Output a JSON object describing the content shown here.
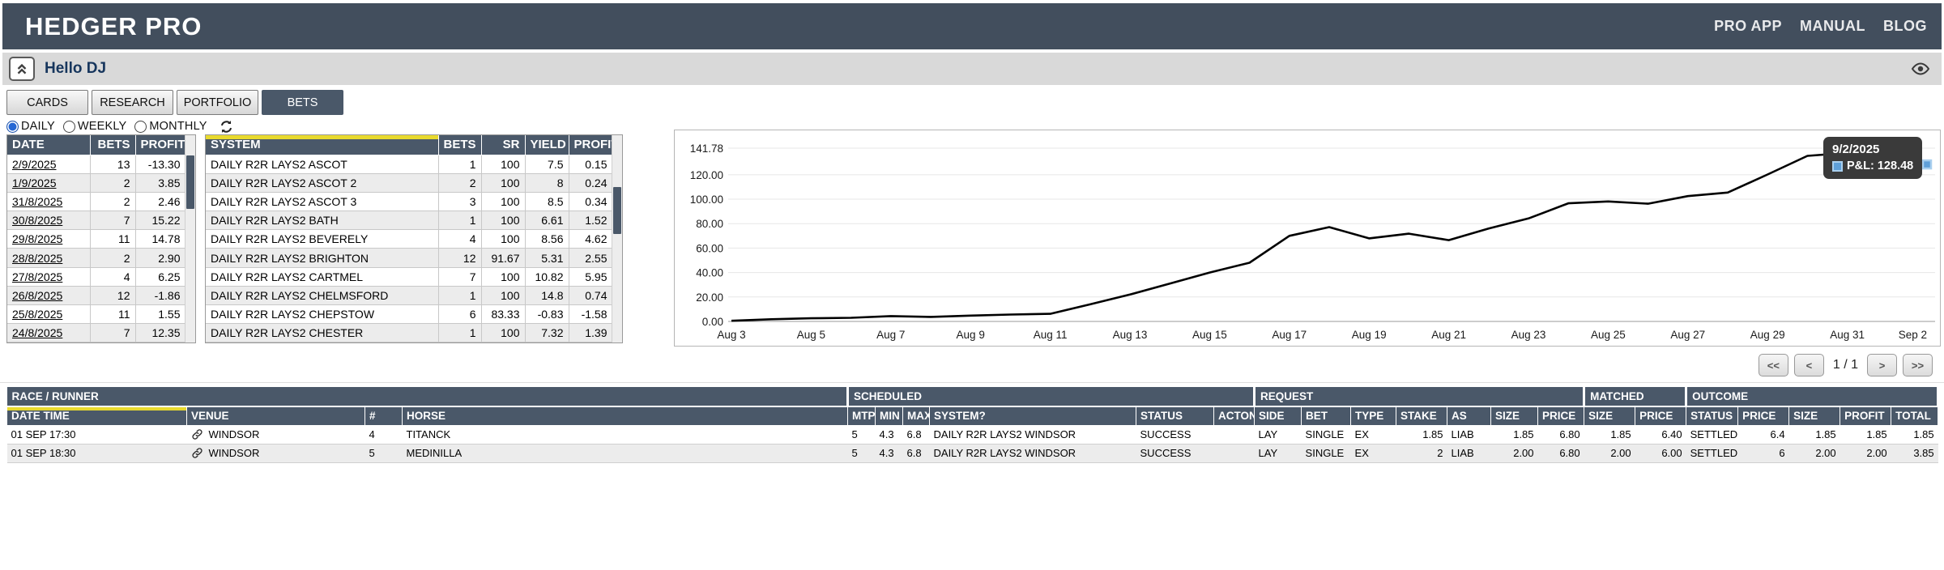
{
  "header": {
    "title": "HEDGER PRO",
    "links": [
      "PRO APP",
      "MANUAL",
      "BLOG"
    ]
  },
  "greeting": {
    "text": "Hello DJ"
  },
  "tabs": [
    {
      "label": "CARDS",
      "active": false
    },
    {
      "label": "RESEARCH",
      "active": false
    },
    {
      "label": "PORTFOLIO",
      "active": false
    },
    {
      "label": "BETS",
      "active": true
    }
  ],
  "filters": {
    "options": [
      {
        "label": "DAILY",
        "selected": true
      },
      {
        "label": "WEEKLY",
        "selected": false
      },
      {
        "label": "MONTHLY",
        "selected": false
      }
    ]
  },
  "daily_table": {
    "headers": [
      "DATE",
      "BETS",
      "PROFIT"
    ],
    "rows": [
      [
        "2/9/2025",
        "13",
        "-13.30"
      ],
      [
        "1/9/2025",
        "2",
        "3.85"
      ],
      [
        "31/8/2025",
        "2",
        "2.46"
      ],
      [
        "30/8/2025",
        "7",
        "15.22"
      ],
      [
        "29/8/2025",
        "11",
        "14.78"
      ],
      [
        "28/8/2025",
        "2",
        "2.90"
      ],
      [
        "27/8/2025",
        "4",
        "6.25"
      ],
      [
        "26/8/2025",
        "12",
        "-1.86"
      ],
      [
        "25/8/2025",
        "11",
        "1.55"
      ],
      [
        "24/8/2025",
        "7",
        "12.35"
      ]
    ]
  },
  "system_table": {
    "headers": [
      "SYSTEM",
      "BETS",
      "SR",
      "YIELD",
      "PROFIT"
    ],
    "rows": [
      [
        "DAILY R2R LAYS2 ASCOT",
        "1",
        "100",
        "7.5",
        "0.15"
      ],
      [
        "DAILY R2R LAYS2 ASCOT 2",
        "2",
        "100",
        "8",
        "0.24"
      ],
      [
        "DAILY R2R LAYS2 ASCOT 3",
        "3",
        "100",
        "8.5",
        "0.34"
      ],
      [
        "DAILY R2R LAYS2 BATH",
        "1",
        "100",
        "6.61",
        "1.52"
      ],
      [
        "DAILY R2R LAYS2 BEVERELY",
        "4",
        "100",
        "8.56",
        "4.62"
      ],
      [
        "DAILY R2R LAYS2 BRIGHTON",
        "12",
        "91.67",
        "5.31",
        "2.55"
      ],
      [
        "DAILY R2R LAYS2 CARTMEL",
        "7",
        "100",
        "10.82",
        "5.95"
      ],
      [
        "DAILY R2R LAYS2 CHELMSFORD",
        "1",
        "100",
        "14.8",
        "0.74"
      ],
      [
        "DAILY R2R LAYS2 CHEPSTOW",
        "6",
        "83.33",
        "-0.83",
        "-1.58"
      ],
      [
        "DAILY R2R LAYS2 CHESTER",
        "1",
        "100",
        "7.32",
        "1.39"
      ]
    ]
  },
  "chart_data": {
    "type": "line",
    "title": "",
    "xlabel": "",
    "ylabel": "",
    "x": [
      "Aug 3",
      "Aug 4",
      "Aug 5",
      "Aug 6",
      "Aug 7",
      "Aug 8",
      "Aug 9",
      "Aug 10",
      "Aug 11",
      "Aug 12",
      "Aug 13",
      "Aug 14",
      "Aug 15",
      "Aug 16",
      "Aug 17",
      "Aug 18",
      "Aug 19",
      "Aug 20",
      "Aug 21",
      "Aug 22",
      "Aug 23",
      "Aug 24",
      "Aug 25",
      "Aug 26",
      "Aug 27",
      "Aug 28",
      "Aug 29",
      "Aug 30",
      "Aug 31",
      "Sep 1",
      "Sep 2"
    ],
    "series": [
      {
        "name": "P&L",
        "values": [
          0.5,
          1.8,
          2.6,
          3.0,
          4.4,
          3.7,
          4.8,
          5.6,
          6.2,
          14,
          22,
          31,
          40,
          48,
          70,
          77.2,
          68,
          71.8,
          66.5,
          76,
          84.28,
          96.63,
          98.18,
          96.32,
          102.57,
          105.47,
          120.25,
          135.47,
          137.93,
          141.78,
          128.48
        ]
      }
    ],
    "ylim": [
      0,
      141.78
    ],
    "yticks": [
      0,
      20,
      40,
      60,
      80,
      100,
      120,
      141.78
    ],
    "ytick_labels": [
      "0.00",
      "20.00",
      "40.00",
      "60.00",
      "80.00",
      "100.00",
      "120.00",
      "141.78"
    ],
    "xtick_every": 2,
    "grid": true,
    "legend_position": "none",
    "line_color": "#000000"
  },
  "tooltip": {
    "title": "9/2/2025",
    "label": "P&L: 128.48"
  },
  "pagination": {
    "first": "<<",
    "prev": "<",
    "page": "1 / 1",
    "next": ">",
    "last": ">>"
  },
  "bets_table": {
    "groups": [
      {
        "label": "RACE / RUNNER",
        "span": 4
      },
      {
        "label": "SCHEDULED",
        "span": 6
      },
      {
        "label": "REQUEST",
        "span": 7
      },
      {
        "label": "MATCHED",
        "span": 2
      },
      {
        "label": "OUTCOME",
        "span": 5
      }
    ],
    "headers": [
      "DATE TIME",
      "VENUE",
      "#",
      "HORSE",
      "MTP",
      "MIN",
      "MAX",
      "SYSTEM?",
      "STATUS",
      "ACTON",
      "SIDE",
      "BET",
      "TYPE",
      "STAKE",
      "AS",
      "SIZE",
      "PRICE",
      "SIZE",
      "PRICE",
      "STATUS",
      "PRICE",
      "SIZE",
      "PROFIT",
      "TOTAL"
    ],
    "rows": [
      [
        "01 SEP 17:30",
        "WINDSOR",
        "4",
        "TITANCK",
        "5",
        "4.3",
        "6.8",
        "DAILY R2R LAYS2 WINDSOR",
        "SUCCESS",
        "",
        "LAY",
        "SINGLE",
        "EX",
        "1.85",
        "LIAB",
        "1.85",
        "6.80",
        "1.85",
        "6.40",
        "SETTLED",
        "6.4",
        "1.85",
        "1.85",
        "1.85"
      ],
      [
        "01 SEP 18:30",
        "WINDSOR",
        "5",
        "MEDINILLA",
        "5",
        "4.3",
        "6.8",
        "DAILY R2R LAYS2 WINDSOR",
        "SUCCESS",
        "",
        "LAY",
        "SINGLE",
        "EX",
        "2",
        "LIAB",
        "2.00",
        "6.80",
        "2.00",
        "6.00",
        "SETTLED",
        "6",
        "2.00",
        "2.00",
        "3.85"
      ]
    ]
  },
  "colors": {
    "header_bg": "#424e5d",
    "table_header_bg": "#4a5869",
    "sort_accent": "#e8d92e",
    "marker_blue": "#5e9fd8",
    "radio_blue": "#2567d4",
    "line_black": "#000000"
  }
}
